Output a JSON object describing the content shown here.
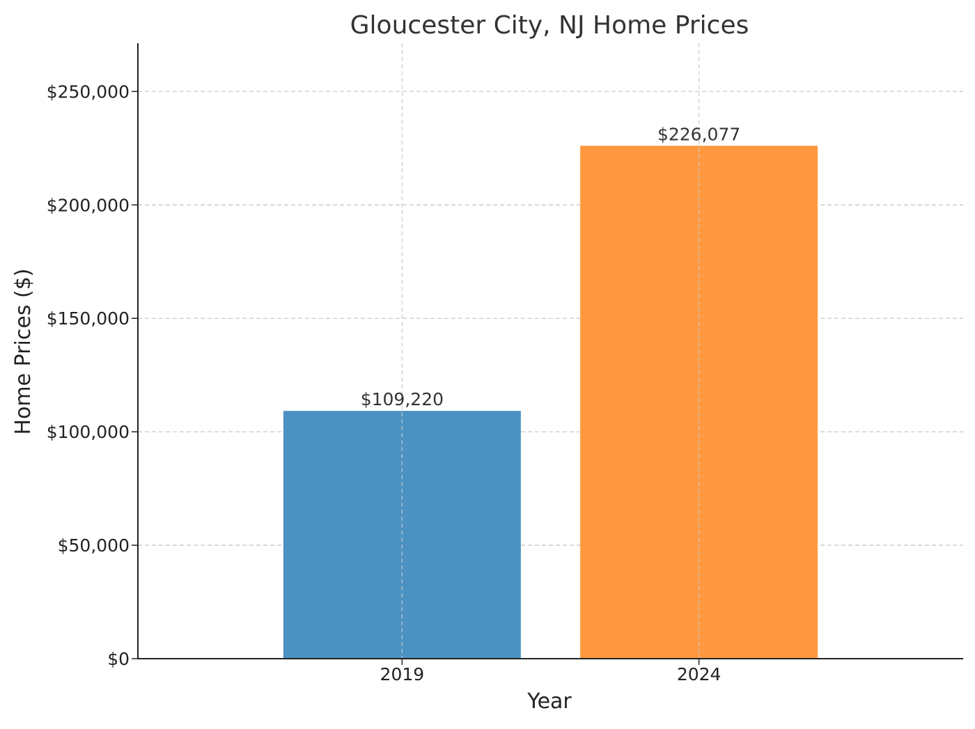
{
  "chart_data": {
    "type": "bar",
    "title": "Gloucester City, NJ Home Prices",
    "xlabel": "Year",
    "ylabel": "Home Prices ($)",
    "categories": [
      "2019",
      "2024"
    ],
    "values": [
      109220,
      226077
    ],
    "value_labels": [
      "$109,220",
      "$226,077"
    ],
    "colors": [
      "#4b92c3",
      "#ff983e"
    ],
    "ylim": [
      0,
      271292
    ],
    "yticks": [
      0,
      50000,
      100000,
      150000,
      200000,
      250000
    ],
    "ytick_labels": [
      "$0",
      "$50,000",
      "$100,000",
      "$150,000",
      "$200,000",
      "$250,000"
    ],
    "grid": true,
    "legend": "none"
  }
}
